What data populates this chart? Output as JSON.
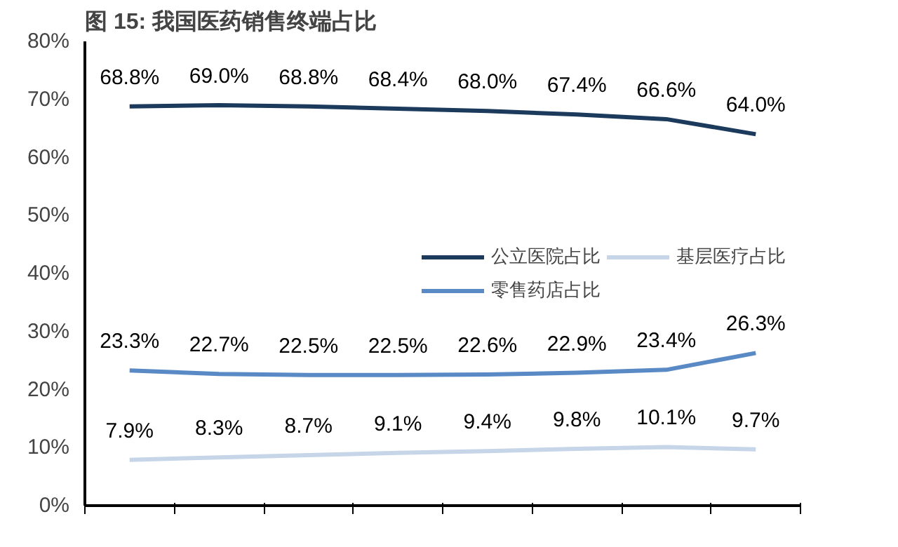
{
  "chart_data": {
    "type": "line",
    "title": "图 15: 我国医药销售终端占比",
    "categories": [
      null,
      null,
      null,
      null,
      null,
      null,
      null,
      null
    ],
    "series": [
      {
        "name": "公立医院占比",
        "color": "#1b3a5c",
        "values": [
          68.8,
          69.0,
          68.8,
          68.4,
          68.0,
          67.4,
          66.6,
          64.0
        ],
        "value_labels": [
          "68.8%",
          "69.0%",
          "68.8%",
          "68.4%",
          "68.0%",
          "67.4%",
          "66.6%",
          "64.0%"
        ]
      },
      {
        "name": "零售药店占比",
        "color": "#5a8ac6",
        "values": [
          23.3,
          22.7,
          22.5,
          22.5,
          22.6,
          22.9,
          23.4,
          26.3
        ],
        "value_labels": [
          "23.3%",
          "22.7%",
          "22.5%",
          "22.5%",
          "22.6%",
          "22.9%",
          "23.4%",
          "26.3%"
        ]
      },
      {
        "name": "基层医疗占比",
        "color": "#c6d6e8",
        "values": [
          7.9,
          8.3,
          8.7,
          9.1,
          9.4,
          9.8,
          10.1,
          9.7
        ],
        "value_labels": [
          "7.9%",
          "8.3%",
          "8.7%",
          "9.1%",
          "9.4%",
          "9.8%",
          "10.1%",
          "9.7%"
        ]
      }
    ],
    "ylim": [
      0,
      80
    ],
    "yticks": [
      {
        "value": 0,
        "label": "0%"
      },
      {
        "value": 10,
        "label": "10%"
      },
      {
        "value": 20,
        "label": "20%"
      },
      {
        "value": 30,
        "label": "30%"
      },
      {
        "value": 40,
        "label": "40%"
      },
      {
        "value": 50,
        "label": "50%"
      },
      {
        "value": 60,
        "label": "60%"
      },
      {
        "value": 70,
        "label": "70%"
      },
      {
        "value": 80,
        "label": "80%"
      }
    ],
    "legend": "right",
    "grid": false,
    "marker": "none",
    "line_style": "solid"
  }
}
